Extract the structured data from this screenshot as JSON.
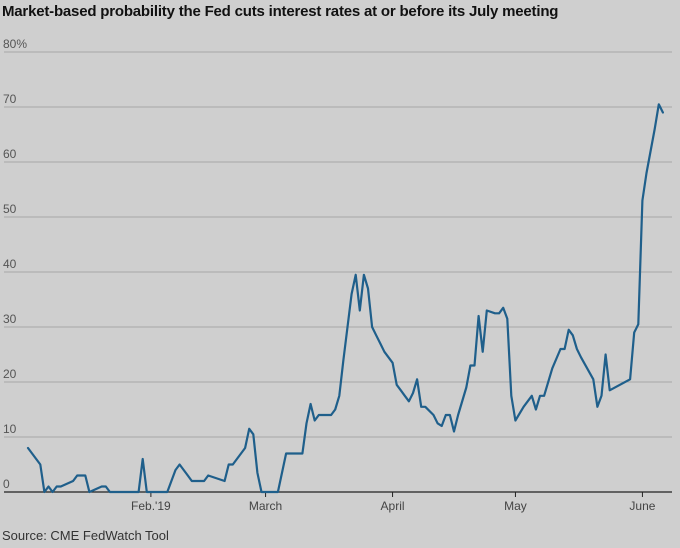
{
  "title": "Market-based probability the Fed cuts interest rates at or before its July meeting",
  "source": "Source: CME FedWatch Tool",
  "chart_data": {
    "type": "line",
    "title": "Market-based probability the Fed cuts interest rates at or before its July meeting",
    "xlabel": "",
    "ylabel": "",
    "ylim": [
      0,
      80
    ],
    "y_ticks": [
      {
        "value": 80,
        "label": "80%"
      },
      {
        "value": 70,
        "label": "70"
      },
      {
        "value": 60,
        "label": "60"
      },
      {
        "value": 50,
        "label": "50"
      },
      {
        "value": 40,
        "label": "40"
      },
      {
        "value": 30,
        "label": "30"
      },
      {
        "value": 20,
        "label": "20"
      },
      {
        "value": 10,
        "label": "10"
      },
      {
        "value": 0,
        "label": "0"
      }
    ],
    "x_ticks": [
      {
        "date": "2019-02-01",
        "label": "Feb.'19"
      },
      {
        "date": "2019-03-01",
        "label": "March"
      },
      {
        "date": "2019-04-01",
        "label": "April"
      },
      {
        "date": "2019-05-01",
        "label": "May"
      },
      {
        "date": "2019-06-01",
        "label": "June"
      }
    ],
    "x_range": [
      "2019-01-02",
      "2019-06-07"
    ],
    "grid": "horizontal",
    "line_color": "#1f5f8b",
    "series": [
      {
        "values": [
          [
            "2019-01-02",
            8
          ],
          [
            "2019-01-03",
            7
          ],
          [
            "2019-01-04",
            6
          ],
          [
            "2019-01-05",
            5
          ],
          [
            "2019-01-06",
            0
          ],
          [
            "2019-01-07",
            1
          ],
          [
            "2019-01-08",
            0
          ],
          [
            "2019-01-09",
            1
          ],
          [
            "2019-01-10",
            1
          ],
          [
            "2019-01-13",
            2
          ],
          [
            "2019-01-14",
            3
          ],
          [
            "2019-01-16",
            3
          ],
          [
            "2019-01-17",
            0
          ],
          [
            "2019-01-20",
            1
          ],
          [
            "2019-01-21",
            1
          ],
          [
            "2019-01-22",
            0
          ],
          [
            "2019-01-29",
            0
          ],
          [
            "2019-01-30",
            6
          ],
          [
            "2019-01-31",
            0
          ],
          [
            "2019-02-05",
            0
          ],
          [
            "2019-02-07",
            4
          ],
          [
            "2019-02-08",
            5
          ],
          [
            "2019-02-09",
            4
          ],
          [
            "2019-02-10",
            3
          ],
          [
            "2019-02-11",
            2
          ],
          [
            "2019-02-14",
            2
          ],
          [
            "2019-02-15",
            3
          ],
          [
            "2019-02-19",
            2
          ],
          [
            "2019-02-20",
            5
          ],
          [
            "2019-02-21",
            5
          ],
          [
            "2019-02-24",
            8
          ],
          [
            "2019-02-25",
            11.5
          ],
          [
            "2019-02-26",
            10.5
          ],
          [
            "2019-02-27",
            3.5
          ],
          [
            "2019-02-28",
            0
          ],
          [
            "2019-03-04",
            0
          ],
          [
            "2019-03-06",
            7
          ],
          [
            "2019-03-10",
            7
          ],
          [
            "2019-03-11",
            12.5
          ],
          [
            "2019-03-12",
            16
          ],
          [
            "2019-03-13",
            13
          ],
          [
            "2019-03-14",
            14
          ],
          [
            "2019-03-17",
            14
          ],
          [
            "2019-03-18",
            15
          ],
          [
            "2019-03-19",
            17.5
          ],
          [
            "2019-03-20",
            24
          ],
          [
            "2019-03-21",
            30
          ],
          [
            "2019-03-22",
            36
          ],
          [
            "2019-03-23",
            39.5
          ],
          [
            "2019-03-24",
            33
          ],
          [
            "2019-03-25",
            39.5
          ],
          [
            "2019-03-26",
            37
          ],
          [
            "2019-03-27",
            30
          ],
          [
            "2019-03-28",
            28.5
          ],
          [
            "2019-03-29",
            27
          ],
          [
            "2019-03-30",
            25.5
          ],
          [
            "2019-03-31",
            24.5
          ],
          [
            "2019-04-01",
            23.5
          ],
          [
            "2019-04-02",
            19.5
          ],
          [
            "2019-04-03",
            18.5
          ],
          [
            "2019-04-04",
            17.5
          ],
          [
            "2019-04-05",
            16.5
          ],
          [
            "2019-04-06",
            18
          ],
          [
            "2019-04-07",
            20.5
          ],
          [
            "2019-04-08",
            15.5
          ],
          [
            "2019-04-09",
            15.5
          ],
          [
            "2019-04-11",
            14
          ],
          [
            "2019-04-12",
            12.5
          ],
          [
            "2019-04-13",
            12
          ],
          [
            "2019-04-14",
            14
          ],
          [
            "2019-04-15",
            14
          ],
          [
            "2019-04-16",
            11
          ],
          [
            "2019-04-17",
            14
          ],
          [
            "2019-04-19",
            19
          ],
          [
            "2019-04-20",
            23
          ],
          [
            "2019-04-21",
            23
          ],
          [
            "2019-04-22",
            32
          ],
          [
            "2019-04-23",
            25.5
          ],
          [
            "2019-04-24",
            33
          ],
          [
            "2019-04-26",
            32.5
          ],
          [
            "2019-04-27",
            32.5
          ],
          [
            "2019-04-28",
            33.5
          ],
          [
            "2019-04-29",
            31.5
          ],
          [
            "2019-04-30",
            17.5
          ],
          [
            "2019-05-01",
            13
          ],
          [
            "2019-05-03",
            15.5
          ],
          [
            "2019-05-04",
            16.5
          ],
          [
            "2019-05-05",
            17.5
          ],
          [
            "2019-05-06",
            15
          ],
          [
            "2019-05-07",
            17.5
          ],
          [
            "2019-05-08",
            17.5
          ],
          [
            "2019-05-10",
            22.5
          ],
          [
            "2019-05-12",
            26
          ],
          [
            "2019-05-13",
            26
          ],
          [
            "2019-05-14",
            29.5
          ],
          [
            "2019-05-15",
            28.5
          ],
          [
            "2019-05-16",
            26
          ],
          [
            "2019-05-17",
            24.5
          ],
          [
            "2019-05-20",
            20.5
          ],
          [
            "2019-05-21",
            15.5
          ],
          [
            "2019-05-22",
            17.5
          ],
          [
            "2019-05-23",
            25
          ],
          [
            "2019-05-24",
            18.5
          ],
          [
            "2019-05-29",
            20.5
          ],
          [
            "2019-05-30",
            29
          ],
          [
            "2019-05-31",
            30.5
          ],
          [
            "2019-06-01",
            53
          ],
          [
            "2019-06-02",
            58
          ],
          [
            "2019-06-03",
            62
          ],
          [
            "2019-06-04",
            66
          ],
          [
            "2019-06-05",
            70.5
          ],
          [
            "2019-06-06",
            69
          ]
        ]
      }
    ]
  }
}
